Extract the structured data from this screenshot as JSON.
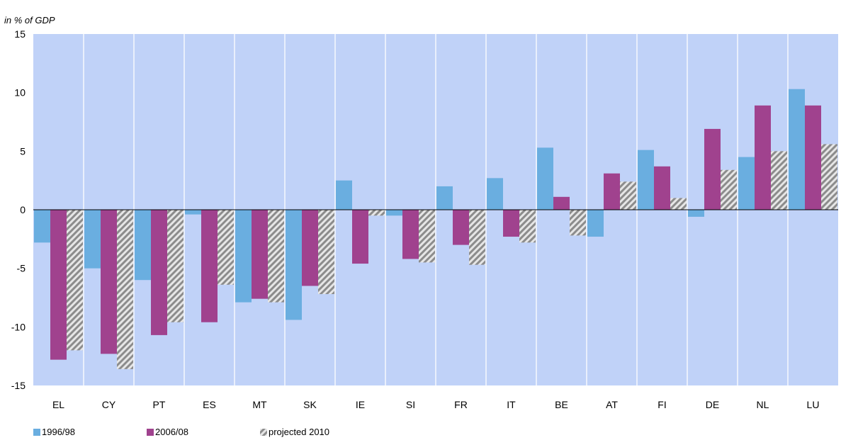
{
  "chart_data": {
    "type": "bar",
    "title": "",
    "unit_label": "in % of GDP",
    "xlabel": "",
    "ylabel": "",
    "ylim": [
      -15,
      15
    ],
    "yticks": [
      15,
      10,
      5,
      0,
      -5,
      -10,
      -15
    ],
    "ytick_labels": [
      "15",
      "10",
      "5",
      "0",
      "-5",
      "-10",
      "-15"
    ],
    "grid": "vertical lines between categories",
    "legend_position": "bottom-left",
    "categories": [
      "EL",
      "CY",
      "PT",
      "ES",
      "MT",
      "SK",
      "IE",
      "SI",
      "FR",
      "IT",
      "BE",
      "AT",
      "FI",
      "DE",
      "NL",
      "LU"
    ],
    "series": [
      {
        "name": "1996/98",
        "color": "#6aaee0",
        "pattern": "solid",
        "values": [
          -2.8,
          -5.0,
          -6.0,
          -0.4,
          -7.9,
          -9.4,
          2.5,
          -0.5,
          2.0,
          2.7,
          5.3,
          -2.3,
          5.1,
          -0.6,
          4.5,
          10.3
        ]
      },
      {
        "name": "2006/08",
        "color": "#a0428e",
        "pattern": "solid",
        "values": [
          -12.8,
          -12.3,
          -10.7,
          -9.6,
          -7.6,
          -6.5,
          -4.6,
          -4.2,
          -3.0,
          -2.3,
          1.1,
          3.1,
          3.7,
          6.9,
          8.9,
          8.9
        ]
      },
      {
        "name": "projected 2010",
        "color": "#a6a6a6",
        "pattern": "hatched",
        "values": [
          -12.0,
          -13.6,
          -9.6,
          -6.4,
          -7.9,
          -7.2,
          -0.5,
          -4.5,
          -4.7,
          -2.8,
          -2.2,
          2.4,
          1.0,
          3.4,
          5.0,
          5.6
        ]
      }
    ]
  }
}
